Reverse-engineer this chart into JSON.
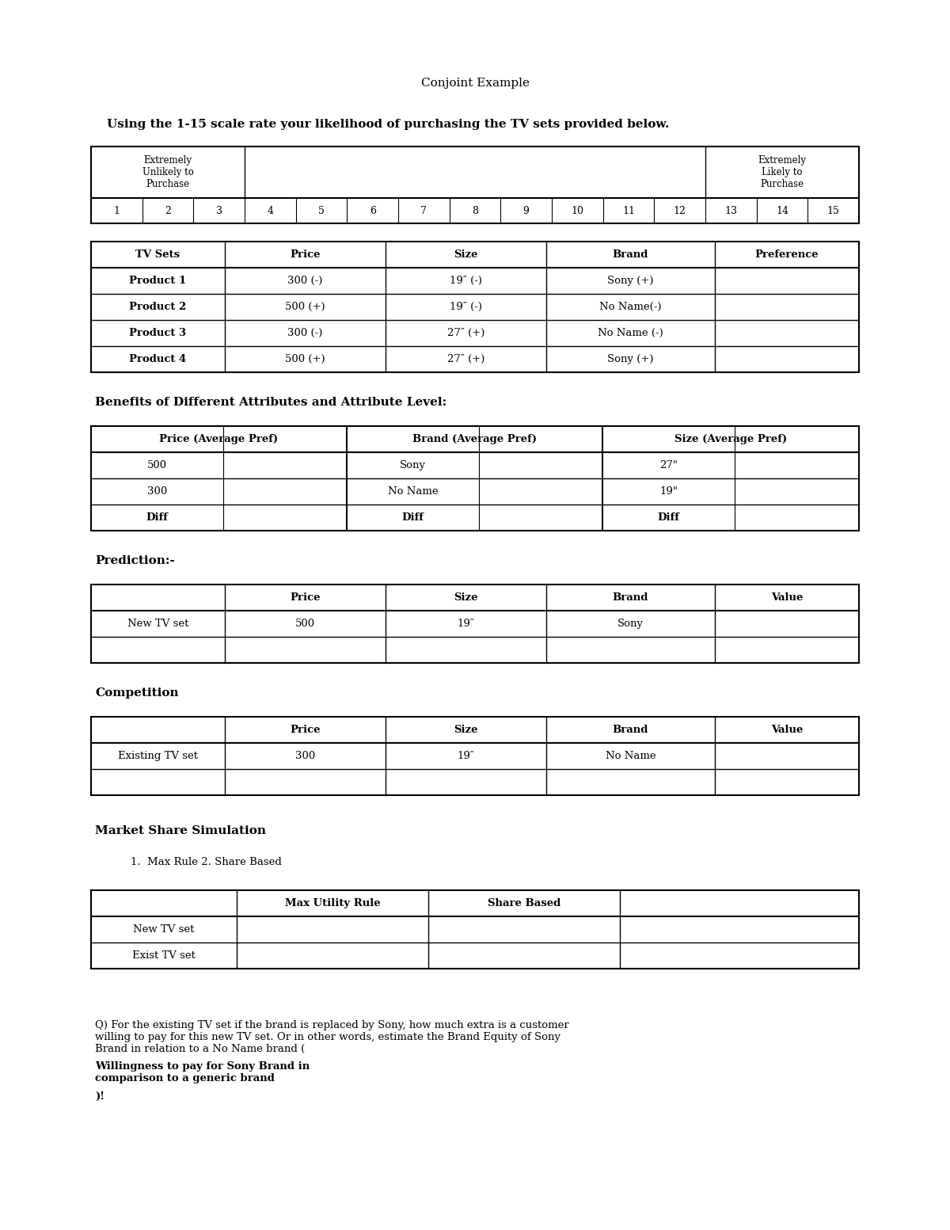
{
  "title": "Conjoint Example",
  "subtitle": "Using the 1-15 scale rate your likelihood of purchasing the TV sets provided below.",
  "scale_numbers": [
    "1",
    "2",
    "3",
    "4",
    "5",
    "6",
    "7",
    "8",
    "9",
    "10",
    "11",
    "12",
    "13",
    "14",
    "15"
  ],
  "products_header": [
    "TV Sets",
    "Price",
    "Size",
    "Brand",
    "Preference"
  ],
  "products_data": [
    [
      "Product 1",
      "300 (-)",
      "19″ (-)",
      "Sony (+)",
      ""
    ],
    [
      "Product 2",
      "500 (+)",
      "19″ (-)",
      "No Name(-)",
      ""
    ],
    [
      "Product 3",
      "300 (-)",
      "27″ (+)",
      "No Name (-)",
      ""
    ],
    [
      "Product 4",
      "500 (+)",
      "27″ (+)",
      "Sony (+)",
      ""
    ]
  ],
  "benefits_title": "Benefits of Different Attributes and Attribute Level:",
  "benefits_data": [
    [
      "500",
      "",
      "Sony",
      "",
      "27″",
      ""
    ],
    [
      "300",
      "",
      "No Name",
      "",
      "19″",
      ""
    ],
    [
      "Diff",
      "",
      "Diff",
      "",
      "Diff",
      ""
    ]
  ],
  "prediction_title": "Prediction:-",
  "prediction_header": [
    "",
    "Price",
    "Size",
    "Brand",
    "Value"
  ],
  "prediction_data": [
    [
      "New TV set",
      "500",
      "19″",
      "Sony",
      ""
    ],
    [
      "",
      "",
      "",
      "",
      ""
    ]
  ],
  "competition_title": "Competition",
  "competition_header": [
    "",
    "Price",
    "Size",
    "Brand",
    "Value"
  ],
  "competition_data": [
    [
      "Existing TV set",
      "300",
      "19″",
      "No Name",
      ""
    ],
    [
      "",
      "",
      "",
      "",
      ""
    ]
  ],
  "market_share_title": "Market Share Simulation",
  "market_share_list": "1.  Max Rule 2. Share Based",
  "market_share_header": [
    "",
    "Max Utility Rule",
    "Share Based",
    ""
  ],
  "market_share_data": [
    [
      "New TV set",
      "",
      "",
      ""
    ],
    [
      "Exist TV set",
      "",
      "",
      ""
    ]
  ],
  "font_family": "DejaVu Serif",
  "bg_color": "#ffffff",
  "text_color": "#000000"
}
